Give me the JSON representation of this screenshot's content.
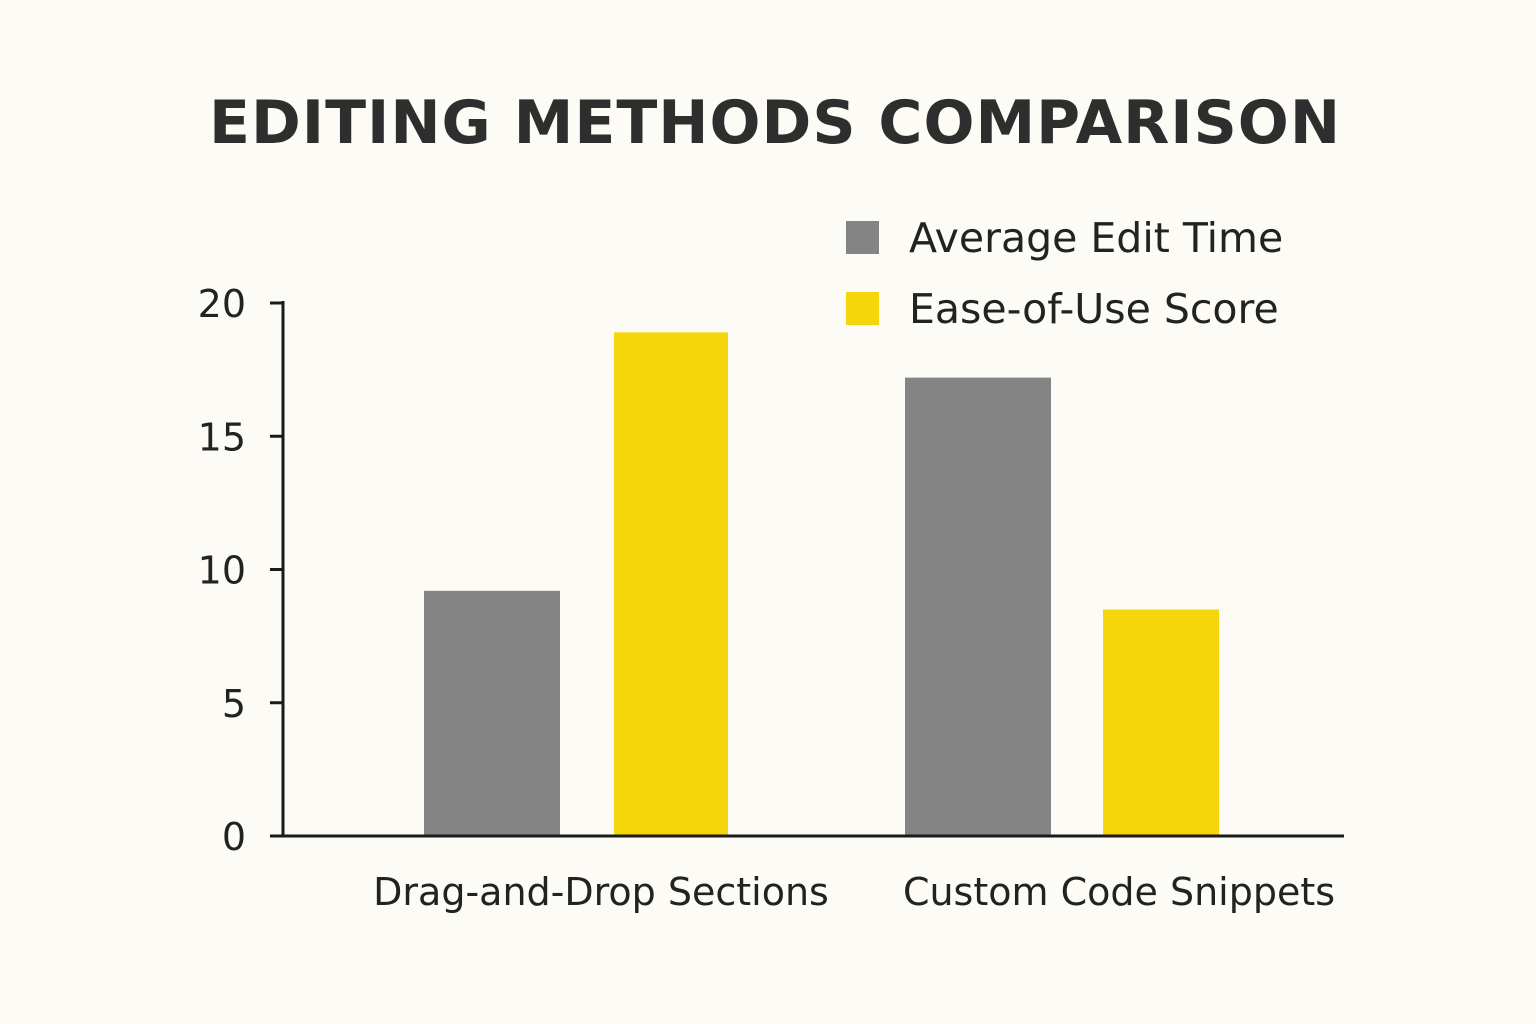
{
  "chart_data": {
    "type": "bar",
    "title": "EDITING METHODS COMPARISON",
    "xlabel": "",
    "ylabel": "",
    "categories": [
      "Drag-and-Drop Sections",
      "Custom Code Snippets"
    ],
    "series": [
      {
        "name": "Average Edit Time",
        "values": [
          9.2,
          17.2
        ],
        "color": "#848484"
      },
      {
        "name": "Ease-of-Use Score",
        "values": [
          18.9,
          8.5
        ],
        "color": "#f5d60c"
      }
    ],
    "ylim": [
      0,
      20
    ],
    "yticks": [
      "0",
      "5",
      "10",
      "15",
      "20"
    ],
    "grid": false,
    "legend_position": "top-right",
    "background_color": "#fcfbf6",
    "axis_color": "#1a1a1a"
  }
}
